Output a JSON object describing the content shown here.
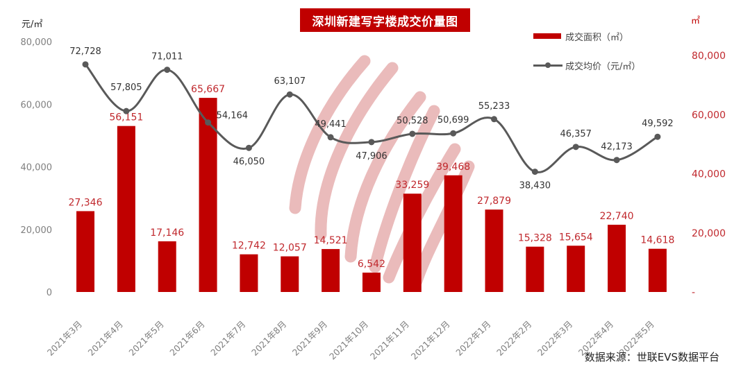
{
  "title": "深圳新建写字楼成交价量图",
  "source": "数据来源：世联EVS数据平台",
  "axes": {
    "left_unit": "元/㎡",
    "right_unit": "㎡",
    "left_ticks": [
      "80,000",
      "60,000",
      "40,000",
      "20,000",
      "0"
    ],
    "right_ticks": [
      "80,000",
      "60,000",
      "40,000",
      "20,000",
      "-"
    ]
  },
  "legend": {
    "bar_label": "成交面积（㎡）",
    "line_label": "成交均价（元/㎡）"
  },
  "colors": {
    "bar": "#c00000",
    "bar_label": "#c0282d",
    "line": "#595959",
    "line_label": "#333333",
    "left_tick": "#7f7f7f",
    "right_tick": "#c0282d",
    "watermark": "#e8b4b4"
  },
  "chart_data": {
    "type": "bar+line",
    "title": "深圳新建写字楼成交价量图",
    "categories": [
      "2021年3月",
      "2021年4月",
      "2021年5月",
      "2021年6月",
      "2021年7月",
      "2021年8月",
      "2021年9月",
      "2021年10月",
      "2021年11月",
      "2021年12月",
      "2022年1月",
      "2022年2月",
      "2022年3月",
      "2022年4月",
      "2022年5月"
    ],
    "series": [
      {
        "name": "成交面积（㎡）",
        "type": "bar",
        "axis": "right",
        "values": [
          27346,
          56151,
          17146,
          65667,
          12742,
          12057,
          14521,
          6542,
          33259,
          39468,
          27879,
          15328,
          15654,
          22740,
          14618
        ],
        "labels": [
          "27,346",
          "56,151",
          "17,146",
          "65,667",
          "12,742",
          "12,057",
          "14,521",
          "6,542",
          "33,259",
          "39,468",
          "27,879",
          "15,328",
          "15,654",
          "22,740",
          "14,618"
        ]
      },
      {
        "name": "成交均价（元/㎡）",
        "type": "line",
        "axis": "left",
        "smooth": true,
        "values": [
          72728,
          57805,
          71011,
          54164,
          46050,
          63107,
          49441,
          47906,
          50528,
          50699,
          55233,
          38430,
          46357,
          42173,
          49592
        ],
        "labels": [
          "72,728",
          "57,805",
          "71,011",
          "54,164",
          "46,050",
          "63,107",
          "49,441",
          "47,906",
          "50,528",
          "50,699",
          "55,233",
          "38,430",
          "46,357",
          "42,173",
          "49,592"
        ]
      }
    ],
    "ylabel_left": "元/㎡",
    "ylabel_right": "㎡",
    "ylim_left": [
      0,
      80000
    ],
    "ylim_right": [
      0,
      80000
    ],
    "grid": false,
    "legend_position": "top-right"
  }
}
